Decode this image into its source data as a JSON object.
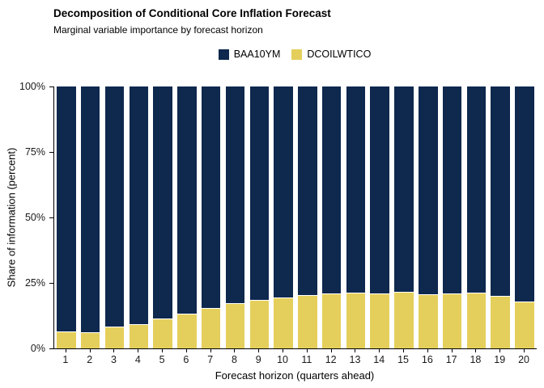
{
  "title": "Decomposition of Conditional Core Inflation Forecast",
  "subtitle": "Marginal variable importance by forecast horizon",
  "colors": {
    "baa10ym": "#0e284e",
    "dcoilwtico": "#e5cf5c",
    "axis": "#000000",
    "background": "#ffffff"
  },
  "legend": {
    "items": [
      {
        "label": "BAA10YM",
        "color": "#0e284e"
      },
      {
        "label": "DCOILWTICO",
        "color": "#e5cf5c"
      }
    ]
  },
  "chart_data": {
    "type": "bar",
    "stacked": true,
    "title": "Decomposition of Conditional Core Inflation Forecast",
    "subtitle": "Marginal variable importance by forecast horizon",
    "categories": [
      1,
      2,
      3,
      4,
      5,
      6,
      7,
      8,
      9,
      10,
      11,
      12,
      13,
      14,
      15,
      16,
      17,
      18,
      19,
      20
    ],
    "series": [
      {
        "name": "BAA10YM",
        "color": "#0e284e",
        "values": [
          93.4,
          93.7,
          91.6,
          90.6,
          88.5,
          86.6,
          84.6,
          82.7,
          81.4,
          80.5,
          79.6,
          79.1,
          78.6,
          78.9,
          78.3,
          79.2,
          79.0,
          78.7,
          79.9,
          82.1
        ]
      },
      {
        "name": "DCOILWTICO",
        "color": "#e5cf5c",
        "values": [
          6.6,
          6.3,
          8.4,
          9.4,
          11.5,
          13.4,
          15.4,
          17.3,
          18.6,
          19.5,
          20.4,
          20.9,
          21.4,
          21.1,
          21.7,
          20.8,
          21.0,
          21.3,
          20.1,
          17.9
        ]
      }
    ],
    "xlabel": "Forecast horizon (quarters ahead)",
    "ylabel": "Share of information (percent)",
    "ylim": [
      0,
      100
    ],
    "y_tick_values": [
      0,
      25,
      50,
      75,
      100
    ],
    "y_tick_labels": [
      "0%",
      "25%",
      "50%",
      "75%",
      "100%"
    ],
    "grid": false,
    "legend_position": "top-center"
  }
}
